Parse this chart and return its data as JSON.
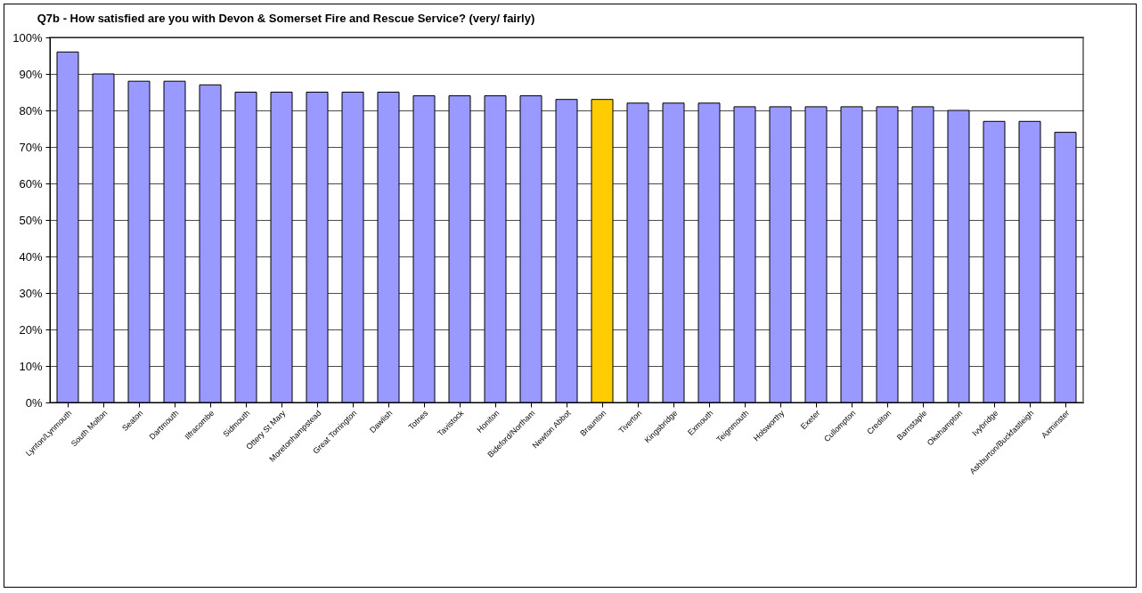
{
  "chart_data": {
    "type": "bar",
    "title": "Q7b - How satisfied are you with Devon & Somerset Fire and Rescue Service? (very/ fairly)",
    "categories": [
      "Lynton/Lynmouth",
      "South Molton",
      "Seaton",
      "Dartmouth",
      "Ilfracombe",
      "Sidmouth",
      "Ottery St Mary",
      "Moretonhampstead",
      "Great Torrington",
      "Dawlish",
      "Totnes",
      "Tavistock",
      "Honiton",
      "Bideford/Northam",
      "Newton Abbot",
      "Braunton",
      "Tiverton",
      "Kingsbridge",
      "Exmouth",
      "Teignmouth",
      "Holsworthy",
      "Exeter",
      "Cullompton",
      "Crediton",
      "Barnstaple",
      "Okehampton",
      "Ivybridge",
      "Ashburton/Buckfastleigh",
      "Axminster"
    ],
    "values": [
      96,
      90,
      88,
      88,
      87,
      85,
      85,
      85,
      85,
      85,
      84,
      84,
      84,
      84,
      83,
      83,
      82,
      82,
      82,
      81,
      81,
      81,
      81,
      81,
      81,
      80,
      77,
      77,
      74
    ],
    "colors": [
      "#9999ff",
      "#9999ff",
      "#9999ff",
      "#9999ff",
      "#9999ff",
      "#9999ff",
      "#9999ff",
      "#9999ff",
      "#9999ff",
      "#9999ff",
      "#9999ff",
      "#9999ff",
      "#9999ff",
      "#9999ff",
      "#9999ff",
      "#ffcc00",
      "#9999ff",
      "#9999ff",
      "#9999ff",
      "#9999ff",
      "#9999ff",
      "#9999ff",
      "#9999ff",
      "#9999ff",
      "#9999ff",
      "#9999ff",
      "#9999ff",
      "#9999ff",
      "#9999ff"
    ],
    "ylim": [
      0,
      100
    ],
    "yticks": [
      {
        "value": 0,
        "label": "0%"
      },
      {
        "value": 10,
        "label": "10%"
      },
      {
        "value": 20,
        "label": "20%"
      },
      {
        "value": 30,
        "label": "30%"
      },
      {
        "value": 40,
        "label": "40%"
      },
      {
        "value": 50,
        "label": "50%"
      },
      {
        "value": 60,
        "label": "60%"
      },
      {
        "value": 70,
        "label": "70%"
      },
      {
        "value": 80,
        "label": "80%"
      },
      {
        "value": 90,
        "label": "90%"
      },
      {
        "value": 100,
        "label": "100%"
      }
    ],
    "grid": "y"
  }
}
